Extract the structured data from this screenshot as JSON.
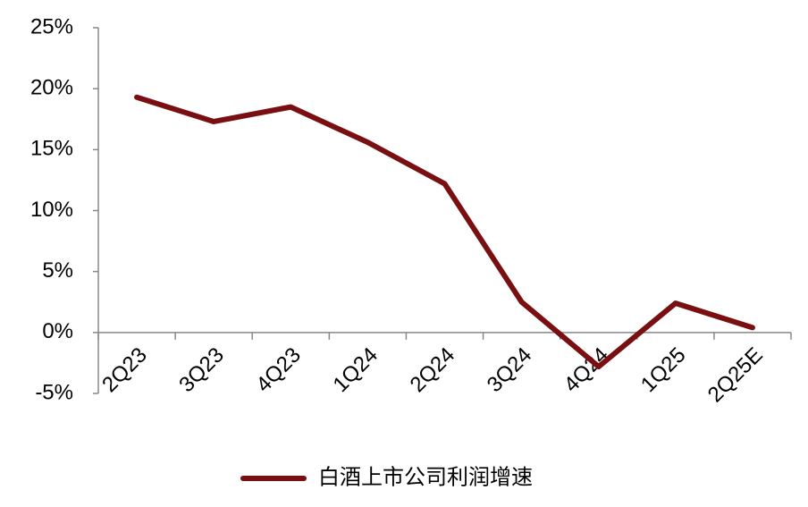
{
  "chart_data": {
    "type": "line",
    "categories": [
      "2Q23",
      "3Q23",
      "4Q23",
      "1Q24",
      "2Q24",
      "3Q24",
      "4Q24",
      "1Q25",
      "2Q25E"
    ],
    "series": [
      {
        "name": "白酒上市公司利润增速",
        "color": "#7a0f12",
        "values": [
          19.3,
          17.3,
          18.5,
          15.6,
          12.2,
          2.5,
          -2.8,
          2.4,
          0.4
        ]
      }
    ],
    "ylim": [
      -5,
      25
    ],
    "yticks": [
      {
        "value": -5,
        "label": "-5%"
      },
      {
        "value": 0,
        "label": "0%"
      },
      {
        "value": 5,
        "label": "5%"
      },
      {
        "value": 10,
        "label": "10%"
      },
      {
        "value": 15,
        "label": "15%"
      },
      {
        "value": 20,
        "label": "20%"
      },
      {
        "value": 25,
        "label": "25%"
      }
    ],
    "grid": false,
    "legend": "bottom"
  }
}
